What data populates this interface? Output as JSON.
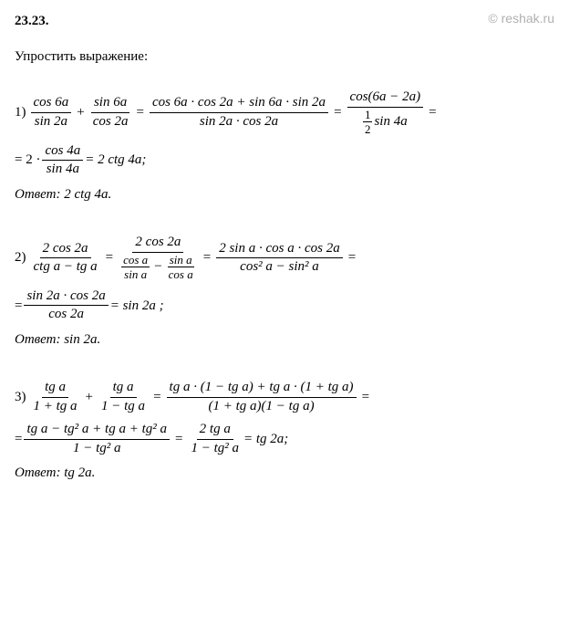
{
  "header": {
    "number": "23.23.",
    "watermark": "© reshak.ru"
  },
  "taskTitle": "Упростить выражение:",
  "p1": {
    "id": "1)",
    "f1n": "cos 6a",
    "f1d": "sin 2a",
    "f2n": "sin 6a",
    "f2d": "cos 2a",
    "f3n": "cos 6a · cos 2a + sin 6a · sin 2a",
    "f3d": "sin 2a · cos 2a",
    "f4n": "cos(6a − 2a)",
    "f4d_sub_n": "1",
    "f4d_sub_d": "2",
    "f4d_rest": "sin 4a",
    "f5lead": "= 2 ·",
    "f5n": "cos 4a",
    "f5d": "sin 4a",
    "f5tail": "= 2 ctg 4a;",
    "answer": "Ответ:  2 ctg 4a."
  },
  "p2": {
    "id": "2)",
    "f1n": "2 cos 2a",
    "f1d": "ctg a − tg a",
    "f2n": "2 cos 2a",
    "f2d_s1n": "cos a",
    "f2d_s1d": "sin a",
    "f2d_s2n": "sin a",
    "f2d_s2d": "cos a",
    "f3n": "2 sin a · cos a · cos 2a",
    "f3d": "cos² a − sin² a",
    "f4lead": "=",
    "f4n": "sin 2a · cos 2a",
    "f4d": "cos 2a",
    "f4tail": "= sin 2a ;",
    "answer": "Ответ:  sin 2a."
  },
  "p3": {
    "id": "3)",
    "f1n": "tg a",
    "f1d": "1 + tg a",
    "f2n": "tg a",
    "f2d": "1 − tg a",
    "f3n": "tg a · (1 − tg a) + tg a · (1 + tg a)",
    "f3d": "(1 + tg a)(1 − tg a)",
    "f4lead": "=",
    "f4n": "tg a − tg² a + tg a + tg² a",
    "f4d": "1 − tg² a",
    "f5n": "2 tg a",
    "f5d": "1 − tg² a",
    "f5tail": "= tg 2a;",
    "answer": "Ответ:  tg 2a."
  }
}
